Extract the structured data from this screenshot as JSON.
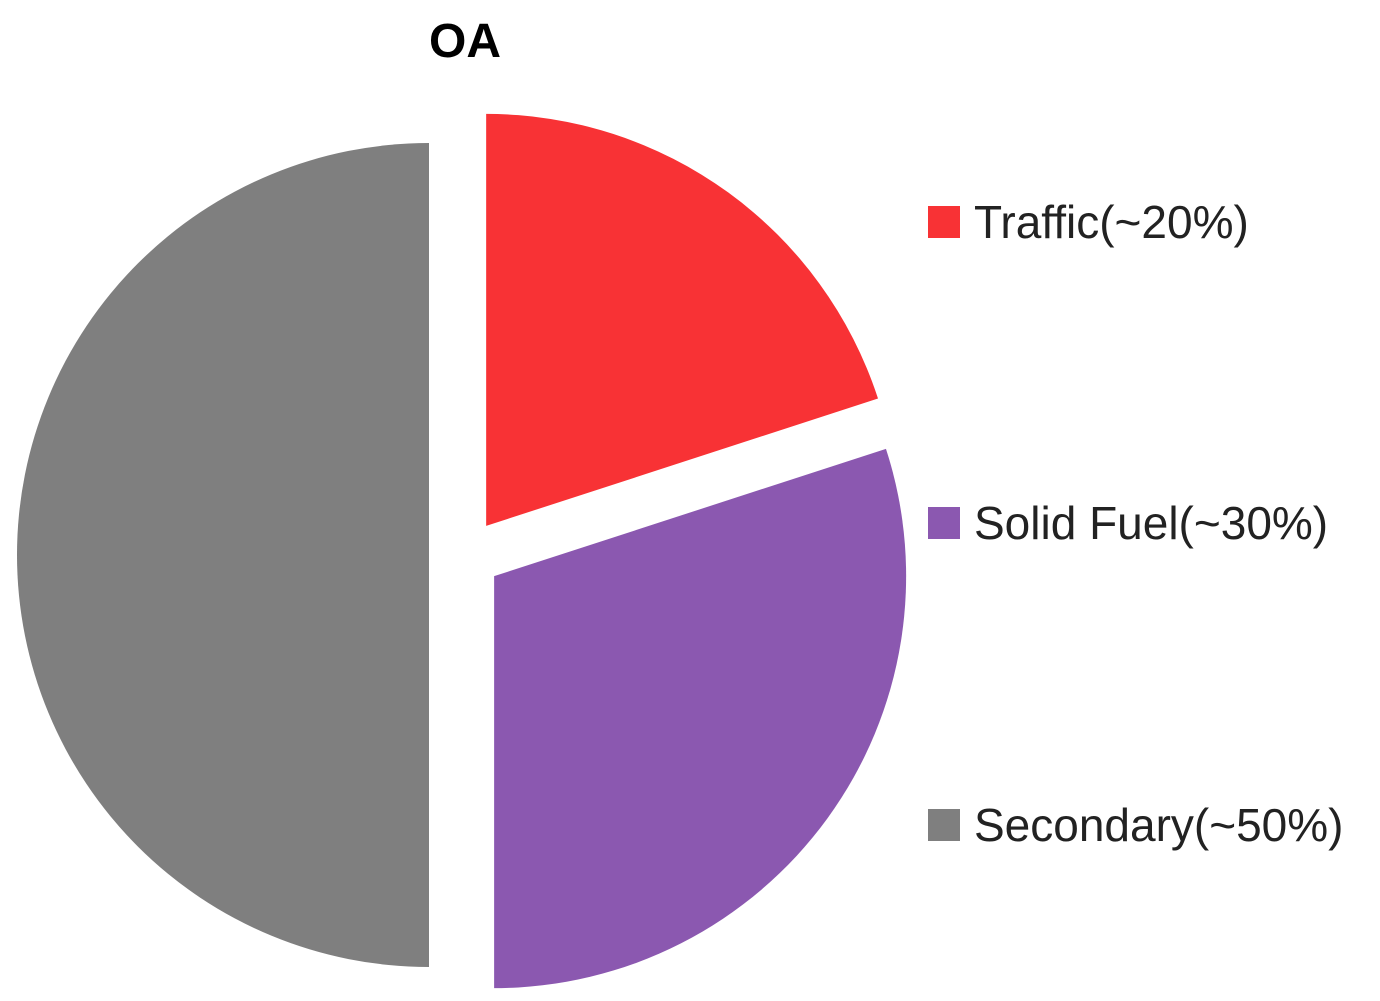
{
  "chart_data": {
    "type": "pie",
    "title": "OA",
    "start_angle_deg": 0,
    "direction": "clockwise",
    "exploded": true,
    "legend_position": "right",
    "slices": [
      {
        "label": "Traffic(~20%)",
        "value": 20,
        "color": "#f83235"
      },
      {
        "label": "Solid Fuel(~30%)",
        "value": 30,
        "color": "#8b58b0"
      },
      {
        "label": "Secondary(~50%)",
        "value": 50,
        "color": "#7f7f7f"
      }
    ]
  }
}
